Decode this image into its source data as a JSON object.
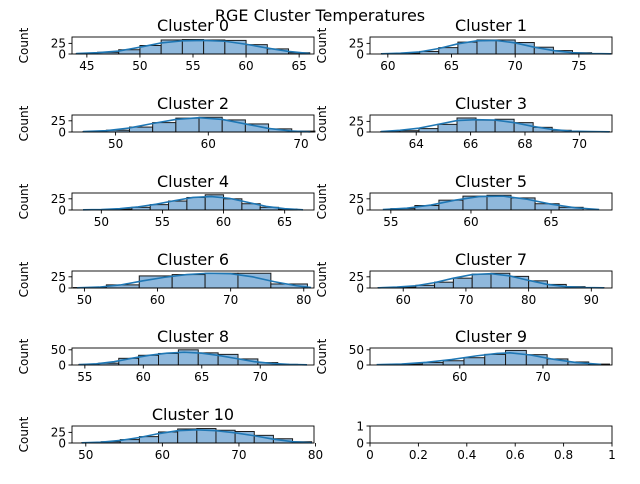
{
  "figure": {
    "suptitle": "RGE Cluster Temperatures"
  },
  "chart_data": [
    {
      "type": "histogram",
      "title": "Cluster 0",
      "ylabel": "Count",
      "xlim": [
        43.6,
        66.4
      ],
      "ylim": [
        0,
        40
      ],
      "xticks": [
        45,
        50,
        55,
        60,
        65
      ],
      "yticks": [
        0,
        25
      ],
      "bins": [
        44,
        46,
        48,
        50,
        52,
        54,
        56,
        58,
        60,
        62,
        64,
        66
      ],
      "counts": [
        1,
        4,
        10,
        20,
        33,
        34,
        33,
        32,
        22,
        12,
        3
      ],
      "kde": [
        [
          44,
          1
        ],
        [
          46,
          3
        ],
        [
          48,
          7
        ],
        [
          50,
          16
        ],
        [
          52,
          26
        ],
        [
          54,
          31
        ],
        [
          56,
          32
        ],
        [
          58,
          30
        ],
        [
          60,
          23
        ],
        [
          62,
          14
        ],
        [
          64,
          6
        ],
        [
          66,
          1
        ]
      ]
    },
    {
      "type": "histogram",
      "title": "Cluster 1",
      "ylabel": "Count",
      "xlim": [
        58.6,
        77.6
      ],
      "ylim": [
        0,
        40
      ],
      "xticks": [
        60,
        65,
        70,
        75
      ],
      "yticks": [
        0,
        25
      ],
      "bins": [
        59.5,
        61,
        62.5,
        64,
        65.5,
        67,
        68.5,
        70,
        71.5,
        73,
        74.5,
        76,
        77.5
      ],
      "counts": [
        1,
        2,
        6,
        15,
        28,
        33,
        33,
        27,
        16,
        8,
        3,
        1
      ],
      "kde": [
        [
          59.5,
          0.5
        ],
        [
          61,
          2
        ],
        [
          62.5,
          5
        ],
        [
          64,
          13
        ],
        [
          65.5,
          24
        ],
        [
          67,
          31
        ],
        [
          68.5,
          32
        ],
        [
          70,
          26
        ],
        [
          71.5,
          16
        ],
        [
          73,
          8
        ],
        [
          74.5,
          3
        ],
        [
          76,
          1
        ],
        [
          77.5,
          0.5
        ]
      ]
    },
    {
      "type": "histogram",
      "title": "Cluster 2",
      "ylabel": "Count",
      "xlim": [
        45.3,
        71.4
      ],
      "ylim": [
        0,
        38
      ],
      "xticks": [
        50,
        60,
        70
      ],
      "yticks": [
        0,
        25
      ],
      "bins": [
        46.5,
        49,
        51.5,
        54,
        56.5,
        59,
        61.5,
        64,
        66.5,
        69,
        71.5
      ],
      "counts": [
        1,
        4,
        11,
        21,
        31,
        33,
        27,
        18,
        7,
        2
      ],
      "kde": [
        [
          46.5,
          1
        ],
        [
          49,
          3
        ],
        [
          51.5,
          9
        ],
        [
          54,
          19
        ],
        [
          56.5,
          28
        ],
        [
          59,
          32
        ],
        [
          61.5,
          28
        ],
        [
          64,
          18
        ],
        [
          66.5,
          8
        ],
        [
          69,
          2
        ],
        [
          71,
          0.5
        ]
      ]
    },
    {
      "type": "histogram",
      "title": "Cluster 3",
      "ylabel": "Count",
      "xlim": [
        62.3,
        71.2
      ],
      "ylim": [
        0,
        40
      ],
      "xticks": [
        64,
        66,
        68,
        70
      ],
      "yticks": [
        0,
        25
      ],
      "bins": [
        62.7,
        63.4,
        64.1,
        64.8,
        65.5,
        66.2,
        66.9,
        67.6,
        68.3,
        69,
        69.7,
        70.4,
        71.1
      ],
      "counts": [
        1,
        3,
        8,
        18,
        33,
        28,
        30,
        22,
        11,
        4,
        1,
        1
      ],
      "kde": [
        [
          62.7,
          1
        ],
        [
          63.4,
          4
        ],
        [
          64.1,
          9
        ],
        [
          64.8,
          18
        ],
        [
          65.5,
          27
        ],
        [
          66.2,
          29
        ],
        [
          66.9,
          28
        ],
        [
          67.6,
          22
        ],
        [
          68.3,
          13
        ],
        [
          69,
          6
        ],
        [
          69.7,
          2
        ],
        [
          70.4,
          1
        ],
        [
          71.1,
          0.5
        ]
      ]
    },
    {
      "type": "histogram",
      "title": "Cluster 4",
      "ylabel": "Count",
      "xlim": [
        47.6,
        67.4
      ],
      "ylim": [
        0,
        38
      ],
      "xticks": [
        50,
        55,
        60,
        65
      ],
      "yticks": [
        0,
        25
      ],
      "bins": [
        49.5,
        51,
        52.5,
        54,
        55.5,
        57,
        58.5,
        60,
        61.5,
        63,
        64.5,
        66
      ],
      "counts": [
        1,
        2,
        6,
        12,
        20,
        28,
        34,
        25,
        14,
        6,
        2
      ],
      "kde": [
        [
          48.5,
          0.5
        ],
        [
          50,
          1
        ],
        [
          51.5,
          3
        ],
        [
          53,
          7
        ],
        [
          54.5,
          13
        ],
        [
          56,
          21
        ],
        [
          57.5,
          28
        ],
        [
          59,
          30
        ],
        [
          60.5,
          26
        ],
        [
          62,
          17
        ],
        [
          63.5,
          8
        ],
        [
          65,
          3
        ],
        [
          66.5,
          0.5
        ]
      ]
    },
    {
      "type": "histogram",
      "title": "Cluster 5",
      "ylabel": "Count",
      "xlim": [
        53.7,
        68.8
      ],
      "ylim": [
        0,
        38
      ],
      "xticks": [
        55,
        60,
        65
      ],
      "yticks": [
        0,
        25
      ],
      "bins": [
        55,
        56.5,
        58,
        59.5,
        61,
        62.5,
        64,
        65.5,
        67
      ],
      "counts": [
        3,
        10,
        22,
        31,
        33,
        27,
        14,
        6
      ],
      "kde": [
        [
          54.5,
          1
        ],
        [
          56,
          4
        ],
        [
          57.5,
          11
        ],
        [
          59,
          22
        ],
        [
          60.5,
          30
        ],
        [
          62,
          31
        ],
        [
          63.5,
          24
        ],
        [
          65,
          13
        ],
        [
          66.5,
          5
        ],
        [
          68,
          1
        ]
      ]
    },
    {
      "type": "histogram",
      "title": "Cluster 6",
      "ylabel": "Count",
      "xlim": [
        48.3,
        81.4
      ],
      "ylim": [
        0,
        38
      ],
      "xticks": [
        50,
        60,
        70,
        80
      ],
      "yticks": [
        0,
        25
      ],
      "bins": [
        48.5,
        53,
        57.5,
        62,
        66.5,
        71,
        75.5,
        80.5
      ],
      "counts": [
        1,
        7,
        27,
        30,
        33,
        33,
        9
      ],
      "kde": [
        [
          49,
          0.5
        ],
        [
          52,
          2
        ],
        [
          55,
          7
        ],
        [
          58,
          16
        ],
        [
          61,
          24
        ],
        [
          64,
          30
        ],
        [
          67,
          33
        ],
        [
          70,
          32
        ],
        [
          73,
          25
        ],
        [
          76,
          14
        ],
        [
          79,
          5
        ],
        [
          81,
          1
        ]
      ]
    },
    {
      "type": "histogram",
      "title": "Cluster 7",
      "ylabel": "Count",
      "xlim": [
        54.7,
        93.3
      ],
      "ylim": [
        0,
        38
      ],
      "xticks": [
        60,
        70,
        80,
        90
      ],
      "yticks": [
        0,
        25
      ],
      "bins": [
        56,
        59,
        62,
        65,
        68,
        71,
        74,
        77,
        80,
        83,
        86,
        89,
        92
      ],
      "counts": [
        1,
        2,
        6,
        13,
        22,
        31,
        33,
        26,
        16,
        8,
        3,
        1
      ],
      "kde": [
        [
          56,
          0.5
        ],
        [
          59,
          2
        ],
        [
          62,
          5
        ],
        [
          65,
          12
        ],
        [
          68,
          22
        ],
        [
          71,
          30
        ],
        [
          74,
          32
        ],
        [
          77,
          27
        ],
        [
          80,
          17
        ],
        [
          83,
          8
        ],
        [
          86,
          3
        ],
        [
          89,
          1
        ],
        [
          92,
          0.5
        ]
      ]
    },
    {
      "type": "histogram",
      "title": "Cluster 8",
      "ylabel": "Count",
      "xlim": [
        53.9,
        74.6
      ],
      "ylim": [
        0,
        56
      ],
      "xticks": [
        55,
        60,
        65,
        70
      ],
      "yticks": [
        0,
        50
      ],
      "bins": [
        54.5,
        56.2,
        57.9,
        59.6,
        61.3,
        63,
        64.7,
        66.4,
        68.1,
        69.8,
        71.5,
        73.2
      ],
      "counts": [
        2,
        6,
        22,
        32,
        38,
        50,
        40,
        35,
        20,
        8,
        2
      ],
      "kde": [
        [
          54.5,
          1
        ],
        [
          56,
          4
        ],
        [
          57.5,
          11
        ],
        [
          59,
          22
        ],
        [
          60.5,
          32
        ],
        [
          62,
          39
        ],
        [
          63.5,
          42
        ],
        [
          65,
          39
        ],
        [
          66.5,
          31
        ],
        [
          68,
          21
        ],
        [
          69.5,
          11
        ],
        [
          71,
          5
        ],
        [
          72.5,
          2
        ],
        [
          74,
          0.5
        ]
      ]
    },
    {
      "type": "histogram",
      "title": "Cluster 9",
      "ylabel": "Count",
      "xlim": [
        49.2,
        78.3
      ],
      "ylim": [
        0,
        56
      ],
      "xticks": [
        60,
        70
      ],
      "yticks": [
        0,
        50
      ],
      "bins": [
        50.5,
        53,
        55.5,
        58,
        60.5,
        63,
        65.5,
        68,
        70.5,
        73,
        75.5,
        78
      ],
      "counts": [
        1,
        3,
        8,
        14,
        24,
        35,
        48,
        34,
        20,
        10,
        3
      ],
      "kde": [
        [
          50,
          1
        ],
        [
          53,
          3
        ],
        [
          56,
          9
        ],
        [
          59,
          18
        ],
        [
          62,
          30
        ],
        [
          64.5,
          38
        ],
        [
          66,
          40
        ],
        [
          68.5,
          33
        ],
        [
          71,
          20
        ],
        [
          74,
          8
        ],
        [
          77,
          2
        ]
      ]
    },
    {
      "type": "histogram",
      "title": "Cluster 10",
      "ylabel": "Count",
      "xlim": [
        48.2,
        79.8
      ],
      "ylim": [
        0,
        40
      ],
      "xticks": [
        50,
        60,
        70,
        80
      ],
      "yticks": [
        0,
        25
      ],
      "bins": [
        49.5,
        52,
        54.5,
        57,
        59.5,
        62,
        64.5,
        67,
        69.5,
        72,
        74.5,
        77,
        79.5
      ],
      "counts": [
        1,
        3,
        8,
        15,
        26,
        33,
        34,
        30,
        27,
        18,
        10,
        3
      ],
      "kde": [
        [
          49.5,
          0.5
        ],
        [
          52,
          2
        ],
        [
          54.5,
          6
        ],
        [
          57,
          13
        ],
        [
          59.5,
          22
        ],
        [
          62,
          29
        ],
        [
          64.5,
          31
        ],
        [
          67,
          29
        ],
        [
          69.5,
          24
        ],
        [
          72,
          17
        ],
        [
          74.5,
          9
        ],
        [
          77,
          3
        ],
        [
          79.5,
          0.5
        ]
      ]
    },
    {
      "type": "empty",
      "title": "",
      "xlim": [
        0,
        1
      ],
      "ylim": [
        0,
        1
      ],
      "xticks": [
        0.0,
        0.2,
        0.4,
        0.6,
        0.8,
        1.0
      ],
      "yticks": [
        0,
        1
      ]
    }
  ],
  "style": {
    "bar_fill": "#8fb8dc",
    "bar_edge": "#1a1a1a",
    "kde_color": "#1f77b4"
  }
}
